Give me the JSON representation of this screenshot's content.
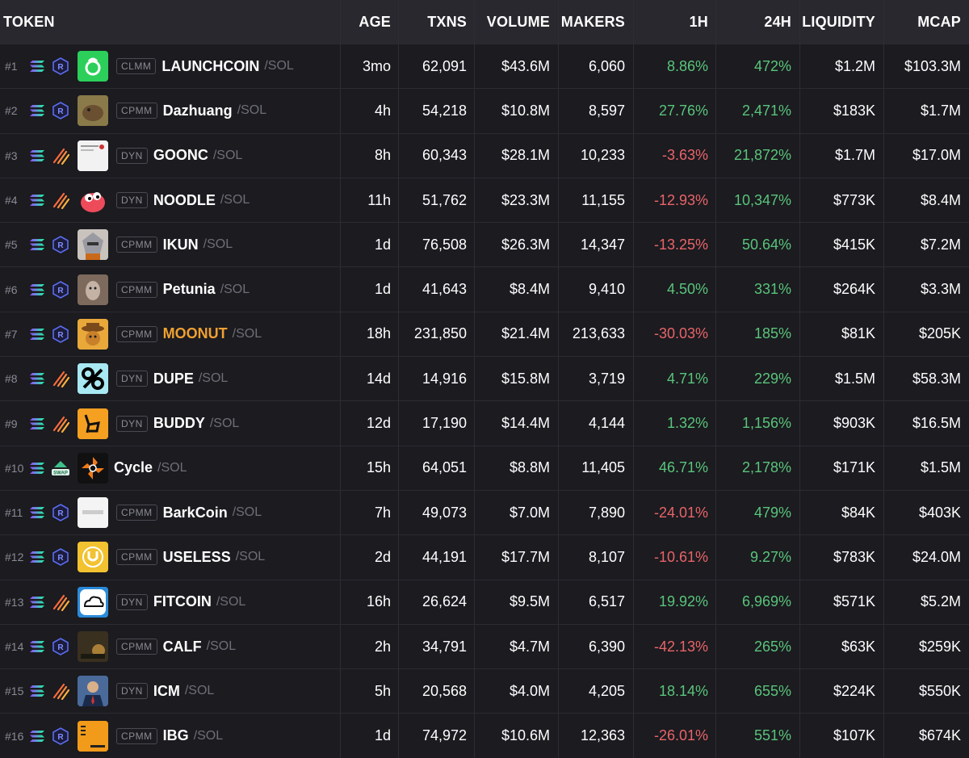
{
  "columns": [
    "TOKEN",
    "AGE",
    "TXNS",
    "VOLUME",
    "MAKERS",
    "1H",
    "24H",
    "LIQUIDITY",
    "MCAP"
  ],
  "colors": {
    "positive": "#5ac47a",
    "negative": "#e86468",
    "highlight": "#f0a030"
  },
  "rows": [
    {
      "rank": "#1",
      "dex": "raydium",
      "logo": "clover-b-logo",
      "logo_bg": "#2ccf5a",
      "badge": "CLMM",
      "name": "LAUNCHCOIN",
      "quote": "/SOL",
      "age": "3mo",
      "txns": "62,091",
      "volume": "$43.6M",
      "makers": "6,060",
      "h1": "8.86%",
      "h1_sign": "pos",
      "h24": "472%",
      "h24_sign": "pos",
      "liquidity": "$1.2M",
      "mcap": "$103.3M"
    },
    {
      "rank": "#2",
      "dex": "raydium",
      "logo": "capybara-logo",
      "logo_bg": "#8a7a4a",
      "badge": "CPMM",
      "name": "Dazhuang",
      "quote": "/SOL",
      "age": "4h",
      "txns": "54,218",
      "volume": "$10.8M",
      "makers": "8,597",
      "h1": "27.76%",
      "h1_sign": "pos",
      "h24": "2,471%",
      "h24_sign": "pos",
      "liquidity": "$183K",
      "mcap": "$1.7M"
    },
    {
      "rank": "#3",
      "dex": "meteora",
      "logo": "screenshot-logo",
      "logo_bg": "#f2f2f2",
      "badge": "DYN",
      "name": "GOONC",
      "quote": "/SOL",
      "age": "8h",
      "txns": "60,343",
      "volume": "$28.1M",
      "makers": "10,233",
      "h1": "-3.63%",
      "h1_sign": "neg",
      "h24": "21,872%",
      "h24_sign": "pos",
      "liquidity": "$1.7M",
      "mcap": "$17.0M"
    },
    {
      "rank": "#4",
      "dex": "meteora",
      "logo": "red-noodle-logo",
      "logo_bg": "#1b1b20",
      "badge": "DYN",
      "name": "NOODLE",
      "quote": "/SOL",
      "age": "11h",
      "txns": "51,762",
      "volume": "$23.3M",
      "makers": "11,155",
      "h1": "-12.93%",
      "h1_sign": "neg",
      "h24": "10,347%",
      "h24_sign": "pos",
      "liquidity": "$773K",
      "mcap": "$8.4M"
    },
    {
      "rank": "#5",
      "dex": "raydium",
      "logo": "anime-character-logo",
      "logo_bg": "#c9c3bd",
      "badge": "CPMM",
      "name": "IKUN",
      "quote": "/SOL",
      "age": "1d",
      "txns": "76,508",
      "volume": "$26.3M",
      "makers": "14,347",
      "h1": "-13.25%",
      "h1_sign": "neg",
      "h24": "50.64%",
      "h24_sign": "pos",
      "liquidity": "$415K",
      "mcap": "$7.2M"
    },
    {
      "rank": "#6",
      "dex": "raydium",
      "logo": "dog-photo-logo",
      "logo_bg": "#7d6a5c",
      "badge": "CPMM",
      "name": "Petunia",
      "quote": "/SOL",
      "age": "1d",
      "txns": "41,643",
      "volume": "$8.4M",
      "makers": "9,410",
      "h1": "4.50%",
      "h1_sign": "pos",
      "h24": "331%",
      "h24_sign": "pos",
      "liquidity": "$264K",
      "mcap": "$3.3M"
    },
    {
      "rank": "#7",
      "dex": "raydium",
      "logo": "cowboy-nut-logo",
      "logo_bg": "#e9a83a",
      "badge": "CPMM",
      "name": "MOONUT",
      "name_highlight": true,
      "quote": "/SOL",
      "age": "18h",
      "txns": "231,850",
      "volume": "$21.4M",
      "makers": "213,633",
      "h1": "-30.03%",
      "h1_sign": "neg",
      "h24": "185%",
      "h24_sign": "pos",
      "liquidity": "$81K",
      "mcap": "$205K"
    },
    {
      "rank": "#8",
      "dex": "meteora",
      "logo": "percent-logo",
      "logo_bg": "#a8e8f2",
      "badge": "DYN",
      "name": "DUPE",
      "quote": "/SOL",
      "age": "14d",
      "txns": "14,916",
      "volume": "$15.8M",
      "makers": "3,719",
      "h1": "4.71%",
      "h1_sign": "pos",
      "h24": "229%",
      "h24_sign": "pos",
      "liquidity": "$1.5M",
      "mcap": "$58.3M"
    },
    {
      "rank": "#9",
      "dex": "meteora",
      "logo": "buddy-b-logo",
      "logo_bg": "#f5a020",
      "badge": "DYN",
      "name": "BUDDY",
      "quote": "/SOL",
      "age": "12d",
      "txns": "17,190",
      "volume": "$14.4M",
      "makers": "4,144",
      "h1": "1.32%",
      "h1_sign": "pos",
      "h24": "1,156%",
      "h24_sign": "pos",
      "liquidity": "$903K",
      "mcap": "$16.5M"
    },
    {
      "rank": "#10",
      "dex": "swap",
      "logo": "orange-flower-logo",
      "logo_bg": "#111111",
      "badge": "",
      "name": "Cycle",
      "quote": "/SOL",
      "age": "15h",
      "txns": "64,051",
      "volume": "$8.8M",
      "makers": "11,405",
      "h1": "46.71%",
      "h1_sign": "pos",
      "h24": "2,178%",
      "h24_sign": "pos",
      "liquidity": "$171K",
      "mcap": "$1.5M"
    },
    {
      "rank": "#11",
      "dex": "raydium",
      "logo": "barkcoin-logo",
      "logo_bg": "#f4f4f4",
      "badge": "CPMM",
      "name": "BarkCoin",
      "quote": "/SOL",
      "age": "7h",
      "txns": "49,073",
      "volume": "$7.0M",
      "makers": "7,890",
      "h1": "-24.01%",
      "h1_sign": "neg",
      "h24": "479%",
      "h24_sign": "pos",
      "liquidity": "$84K",
      "mcap": "$403K"
    },
    {
      "rank": "#12",
      "dex": "raydium",
      "logo": "useless-coin-logo",
      "logo_bg": "#f2c230",
      "badge": "CPMM",
      "name": "USELESS",
      "quote": "/SOL",
      "age": "2d",
      "txns": "44,191",
      "volume": "$17.7M",
      "makers": "8,107",
      "h1": "-10.61%",
      "h1_sign": "neg",
      "h24": "9.27%",
      "h24_sign": "pos",
      "liquidity": "$783K",
      "mcap": "$24.0M"
    },
    {
      "rank": "#13",
      "dex": "meteora",
      "logo": "cloud-logo",
      "logo_bg": "#2a8ad8",
      "badge": "DYN",
      "name": "FITCOIN",
      "quote": "/SOL",
      "age": "16h",
      "txns": "26,624",
      "volume": "$9.5M",
      "makers": "6,517",
      "h1": "19.92%",
      "h1_sign": "pos",
      "h24": "6,969%",
      "h24_sign": "pos",
      "liquidity": "$571K",
      "mcap": "$5.2M"
    },
    {
      "rank": "#14",
      "dex": "raydium",
      "logo": "dark-scene-logo",
      "logo_bg": "#3a3020",
      "badge": "CPMM",
      "name": "CALF",
      "quote": "/SOL",
      "age": "2h",
      "txns": "34,791",
      "volume": "$4.7M",
      "makers": "6,390",
      "h1": "-42.13%",
      "h1_sign": "neg",
      "h24": "265%",
      "h24_sign": "pos",
      "liquidity": "$63K",
      "mcap": "$259K"
    },
    {
      "rank": "#15",
      "dex": "meteora",
      "logo": "man-in-suit-logo",
      "logo_bg": "#4a6a9a",
      "badge": "DYN",
      "name": "ICM",
      "quote": "/SOL",
      "age": "5h",
      "txns": "20,568",
      "volume": "$4.0M",
      "makers": "4,205",
      "h1": "18.14%",
      "h1_sign": "pos",
      "h24": "655%",
      "h24_sign": "pos",
      "liquidity": "$224K",
      "mcap": "$550K"
    },
    {
      "rank": "#16",
      "dex": "raydium",
      "logo": "orange-doc-logo",
      "logo_bg": "#f29a1a",
      "badge": "CPMM",
      "name": "IBG",
      "quote": "/SOL",
      "age": "1d",
      "txns": "74,972",
      "volume": "$10.6M",
      "makers": "12,363",
      "h1": "-26.01%",
      "h1_sign": "neg",
      "h24": "551%",
      "h24_sign": "pos",
      "liquidity": "$107K",
      "mcap": "$674K"
    }
  ]
}
